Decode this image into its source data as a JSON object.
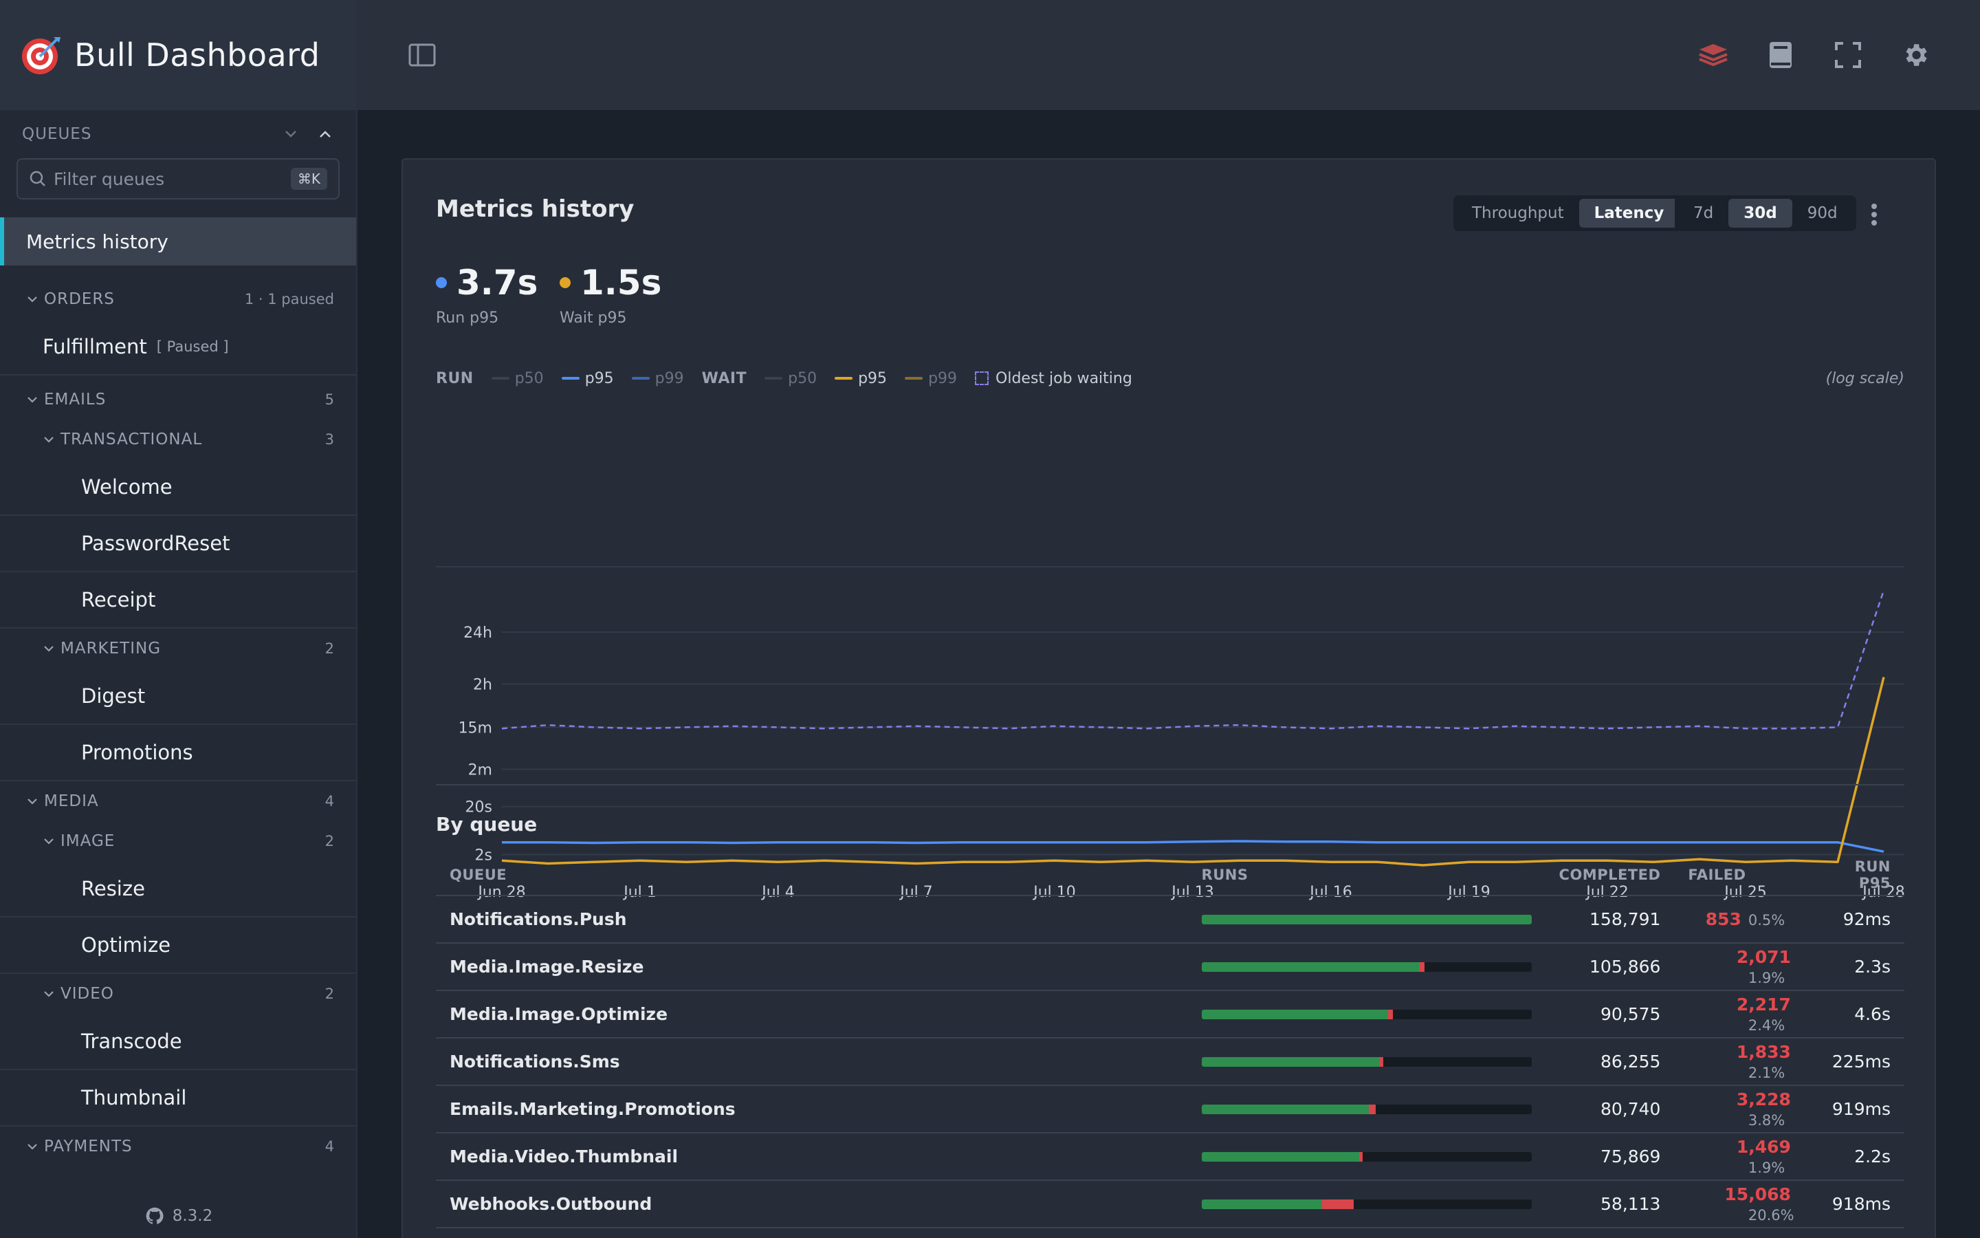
{
  "app": {
    "title": "Bull Dashboard",
    "version": "8.3.2"
  },
  "sidebar": {
    "queues_label": "QUEUES",
    "filter_placeholder": "Filter queues",
    "shortcut": "⌘K",
    "active_item": "Metrics history",
    "groups": {
      "orders": {
        "label": "ORDERS",
        "count": "1 · 1 paused",
        "item": "Fulfillment",
        "item_tag": "[ Paused ]"
      },
      "emails": {
        "label": "EMAILS",
        "count": "5"
      },
      "transactional": {
        "label": "TRANSACTIONAL",
        "count": "3",
        "items": [
          "Welcome",
          "PasswordReset",
          "Receipt"
        ]
      },
      "marketing": {
        "label": "MARKETING",
        "count": "2",
        "items": [
          "Digest",
          "Promotions"
        ]
      },
      "media": {
        "label": "MEDIA",
        "count": "4"
      },
      "image": {
        "label": "IMAGE",
        "count": "2",
        "items": [
          "Resize",
          "Optimize"
        ]
      },
      "video": {
        "label": "VIDEO",
        "count": "2",
        "items": [
          "Transcode",
          "Thumbnail"
        ]
      },
      "payments": {
        "label": "PAYMENTS",
        "count": "4"
      }
    }
  },
  "topbar": {
    "icons": [
      "sidebar-toggle-icon",
      "redis-icon",
      "book-icon",
      "fullscreen-icon",
      "gear-icon"
    ]
  },
  "metrics": {
    "title": "Metrics history",
    "modes": [
      "Throughput",
      "Latency"
    ],
    "active_mode": "Latency",
    "ranges": [
      "7d",
      "30d",
      "90d"
    ],
    "active_range": "30d",
    "stats": [
      {
        "value": "3.7s",
        "label": "Run p95",
        "color": "#4f8ff7"
      },
      {
        "value": "1.5s",
        "label": "Wait p95",
        "color": "#e0a526"
      }
    ],
    "legend": {
      "run_label": "RUN",
      "wait_label": "WAIT",
      "p50": "p50",
      "p95": "p95",
      "p99": "p99",
      "oldest": "Oldest job waiting",
      "scale_note": "(log scale)"
    }
  },
  "chart_data": {
    "type": "line",
    "log_scale": true,
    "y_tick_labels": [
      "24h",
      "2h",
      "15m",
      "2m",
      "20s",
      "2s"
    ],
    "y_tick_seconds": [
      86400,
      7200,
      900,
      120,
      20,
      2
    ],
    "x_tick_labels": [
      "Jun 28",
      "Jul 1",
      "Jul 4",
      "Jul 7",
      "Jul 10",
      "Jul 13",
      "Jul 16",
      "Jul 19",
      "Jul 22",
      "Jul 25",
      "Jul 28"
    ],
    "x_days": 30,
    "series": [
      {
        "name": "Oldest job waiting",
        "group": "other",
        "color": "#8d7bea",
        "dashed": true,
        "values": [
          850,
          1000,
          900,
          850,
          900,
          950,
          900,
          850,
          900,
          950,
          900,
          850,
          950,
          900,
          850,
          950,
          1000,
          900,
          850,
          950,
          900,
          850,
          950,
          900,
          850,
          900,
          950,
          850,
          850,
          900,
          640000
        ]
      },
      {
        "name": "p95",
        "group": "RUN",
        "color": "#4f8ff7",
        "dashed": false,
        "values": [
          3.6,
          3.6,
          3.5,
          3.6,
          3.6,
          3.5,
          3.6,
          3.6,
          3.6,
          3.5,
          3.6,
          3.6,
          3.6,
          3.6,
          3.6,
          3.7,
          3.8,
          3.7,
          3.7,
          3.6,
          3.6,
          3.6,
          3.6,
          3.6,
          3.6,
          3.6,
          3.6,
          3.6,
          3.6,
          3.6,
          2.3
        ]
      },
      {
        "name": "p95",
        "group": "WAIT",
        "color": "#e0a526",
        "dashed": false,
        "values": [
          1.5,
          1.3,
          1.4,
          1.5,
          1.4,
          1.5,
          1.4,
          1.5,
          1.4,
          1.3,
          1.4,
          1.4,
          1.5,
          1.4,
          1.5,
          1.4,
          1.5,
          1.5,
          1.4,
          1.4,
          1.2,
          1.4,
          1.4,
          1.5,
          1.5,
          1.4,
          1.6,
          1.4,
          1.5,
          1.4,
          10000
        ]
      }
    ]
  },
  "by_queue": {
    "title": "By queue",
    "columns": [
      "QUEUE",
      "RUNS",
      "COMPLETED",
      "FAILED",
      "RUN P95"
    ],
    "rows": [
      {
        "queue": "Notifications.Push",
        "completed": "158,791",
        "failed": "853",
        "pct": "0.5%",
        "p95": "92ms",
        "ok_frac": 1.0,
        "fail_frac": 0.0
      },
      {
        "queue": "Media.Image.Resize",
        "completed": "105,866",
        "failed": "2,071",
        "pct": "1.9%",
        "p95": "2.3s",
        "ok_frac": 0.662,
        "fail_frac": 0.013
      },
      {
        "queue": "Media.Image.Optimize",
        "completed": "90,575",
        "failed": "2,217",
        "pct": "2.4%",
        "p95": "4.6s",
        "ok_frac": 0.566,
        "fail_frac": 0.014
      },
      {
        "queue": "Notifications.Sms",
        "completed": "86,255",
        "failed": "1,833",
        "pct": "2.1%",
        "p95": "225ms",
        "ok_frac": 0.54,
        "fail_frac": 0.012
      },
      {
        "queue": "Emails.Marketing.Promotions",
        "completed": "80,740",
        "failed": "3,228",
        "pct": "3.8%",
        "p95": "919ms",
        "ok_frac": 0.508,
        "fail_frac": 0.02
      },
      {
        "queue": "Media.Video.Thumbnail",
        "completed": "75,869",
        "failed": "1,469",
        "pct": "1.9%",
        "p95": "2.2s",
        "ok_frac": 0.478,
        "fail_frac": 0.01
      },
      {
        "queue": "Webhooks.Outbound",
        "completed": "58,113",
        "failed": "15,068",
        "pct": "20.6%",
        "p95": "918ms",
        "ok_frac": 0.366,
        "fail_frac": 0.095
      }
    ]
  }
}
